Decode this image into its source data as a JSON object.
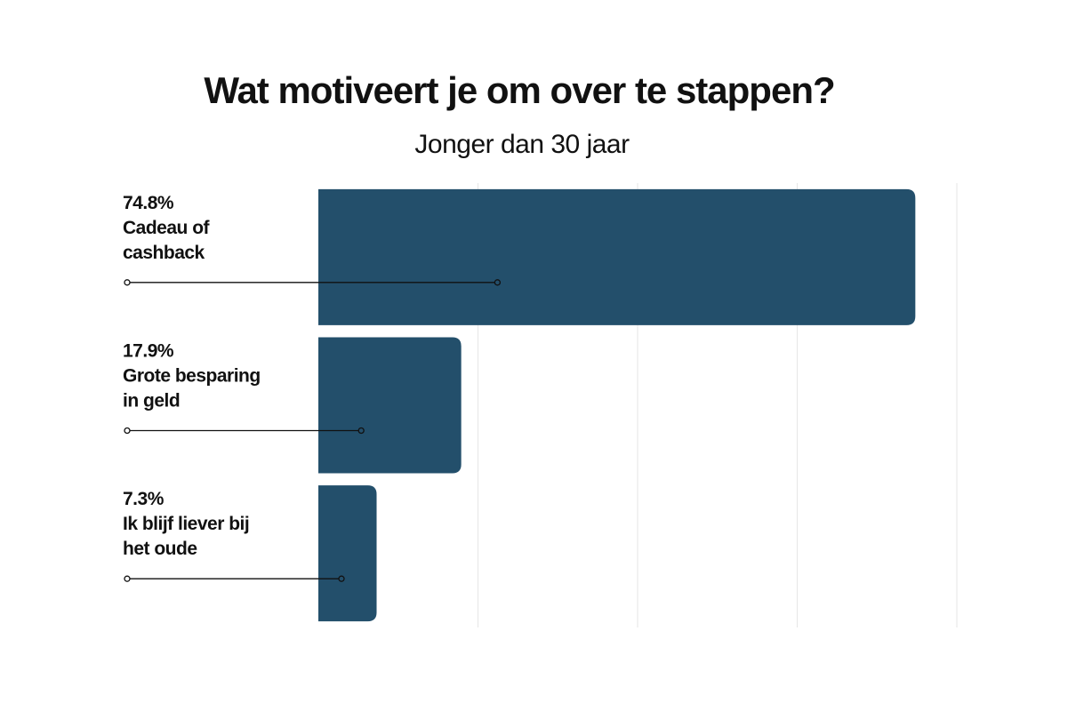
{
  "chart_data": {
    "type": "bar",
    "orientation": "horizontal",
    "title": "Wat motiveert je om over te stappen?",
    "subtitle": "Jonger dan 30 jaar",
    "categories": [
      "Cadeau of cashback",
      "Grote besparing in geld",
      "Ik blijf liever bij het oude"
    ],
    "values": [
      74.8,
      17.9,
      7.3
    ],
    "value_labels": [
      "74.8%",
      "17.9%",
      "7.3%"
    ],
    "category_lines": [
      [
        "Cadeau of",
        "cashback"
      ],
      [
        "Grote besparing",
        "in geld"
      ],
      [
        "Ik blijf liever bij",
        "het oude"
      ]
    ],
    "xlim": [
      0,
      80
    ],
    "grid": true,
    "legend": "none",
    "bar_color": "#234f6b",
    "grid_color": "#e6e6e6"
  }
}
